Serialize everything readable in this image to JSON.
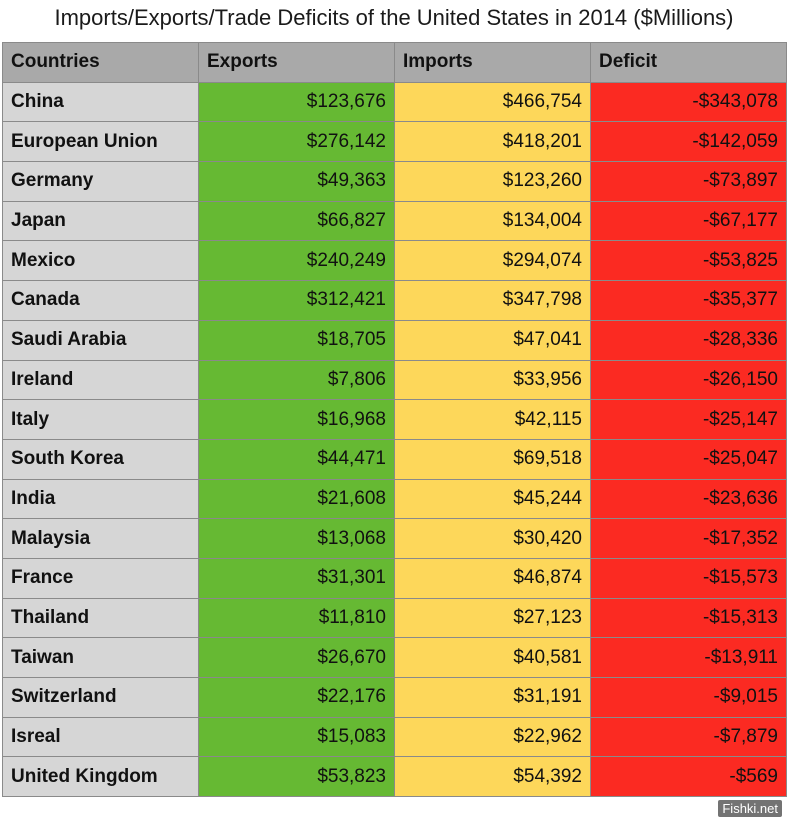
{
  "title": "Imports/Exports/Trade Deficits of the United States in 2014 ($Millions)",
  "watermark": "Fishki.net",
  "colors": {
    "header": "#a9a9a9",
    "country": "#d6d6d6",
    "exports": "#66b933",
    "imports": "#fdd75a",
    "deficit": "#fb2a22"
  },
  "chart_data": {
    "type": "table",
    "title": "Imports/Exports/Trade Deficits of the United States in 2014 ($Millions)",
    "columns": [
      "Countries",
      "Exports",
      "Imports",
      "Deficit"
    ],
    "rows": [
      {
        "country": "China",
        "exports": "$123,676",
        "imports": "$466,754",
        "deficit": "-$343,078"
      },
      {
        "country": "European Union",
        "exports": "$276,142",
        "imports": "$418,201",
        "deficit": "-$142,059"
      },
      {
        "country": "Germany",
        "exports": "$49,363",
        "imports": "$123,260",
        "deficit": "-$73,897"
      },
      {
        "country": "Japan",
        "exports": "$66,827",
        "imports": "$134,004",
        "deficit": "-$67,177"
      },
      {
        "country": "Mexico",
        "exports": "$240,249",
        "imports": "$294,074",
        "deficit": "-$53,825"
      },
      {
        "country": "Canada",
        "exports": "$312,421",
        "imports": "$347,798",
        "deficit": "-$35,377"
      },
      {
        "country": "Saudi Arabia",
        "exports": "$18,705",
        "imports": "$47,041",
        "deficit": "-$28,336"
      },
      {
        "country": "Ireland",
        "exports": "$7,806",
        "imports": "$33,956",
        "deficit": "-$26,150"
      },
      {
        "country": "Italy",
        "exports": "$16,968",
        "imports": "$42,115",
        "deficit": "-$25,147"
      },
      {
        "country": "South Korea",
        "exports": "$44,471",
        "imports": "$69,518",
        "deficit": "-$25,047"
      },
      {
        "country": "India",
        "exports": "$21,608",
        "imports": "$45,244",
        "deficit": "-$23,636"
      },
      {
        "country": "Malaysia",
        "exports": "$13,068",
        "imports": "$30,420",
        "deficit": "-$17,352"
      },
      {
        "country": "France",
        "exports": "$31,301",
        "imports": "$46,874",
        "deficit": "-$15,573"
      },
      {
        "country": "Thailand",
        "exports": "$11,810",
        "imports": "$27,123",
        "deficit": "-$15,313"
      },
      {
        "country": "Taiwan",
        "exports": "$26,670",
        "imports": "$40,581",
        "deficit": "-$13,911"
      },
      {
        "country": "Switzerland",
        "exports": "$22,176",
        "imports": "$31,191",
        "deficit": "-$9,015"
      },
      {
        "country": "Isreal",
        "exports": "$15,083",
        "imports": "$22,962",
        "deficit": "-$7,879"
      },
      {
        "country": "United Kingdom",
        "exports": "$53,823",
        "imports": "$54,392",
        "deficit": "-$569"
      }
    ]
  }
}
